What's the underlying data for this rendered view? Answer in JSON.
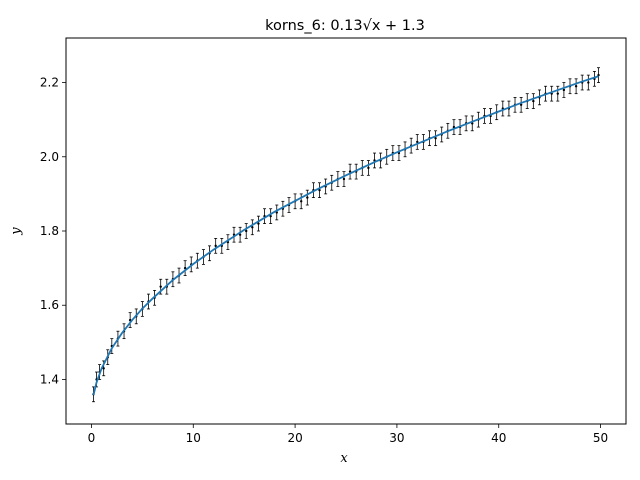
{
  "chart_data": {
    "type": "scatter",
    "title": "korns_6: 0.13√x + 1.3",
    "xlabel": "x",
    "ylabel": "y",
    "xlim": [
      -2.5,
      52.5
    ],
    "ylim": [
      1.28,
      2.32
    ],
    "x_ticks": [
      0,
      10,
      20,
      30,
      40,
      50
    ],
    "y_ticks": [
      1.4,
      1.6,
      1.8,
      2.0,
      2.2
    ],
    "x_tick_labels": [
      "0",
      "10",
      "20",
      "30",
      "40",
      "50"
    ],
    "y_tick_labels": [
      "1.4",
      "1.6",
      "1.8",
      "2.0",
      "2.2"
    ],
    "grid": false,
    "legend": "none",
    "series": [
      {
        "kind": "points-with-errorbars",
        "color": "#000000",
        "error": 0.02,
        "x": [
          0.2,
          0.5,
          0.8,
          1.2,
          1.6,
          2.0,
          2.6,
          3.2,
          3.8,
          4.4,
          5.0,
          5.6,
          6.2,
          6.8,
          7.4,
          8.0,
          8.6,
          9.2,
          9.8,
          10.4,
          11.0,
          11.6,
          12.2,
          12.8,
          13.4,
          14.0,
          14.6,
          15.2,
          15.8,
          16.4,
          17.0,
          17.6,
          18.2,
          18.8,
          19.4,
          20.0,
          20.6,
          21.2,
          21.8,
          22.4,
          23.0,
          23.6,
          24.2,
          24.8,
          25.4,
          26.0,
          26.6,
          27.2,
          27.8,
          28.4,
          29.0,
          29.6,
          30.2,
          30.8,
          31.4,
          32.0,
          32.6,
          33.2,
          33.8,
          34.4,
          35.0,
          35.6,
          36.2,
          36.8,
          37.4,
          38.0,
          38.6,
          39.2,
          39.8,
          40.4,
          41.0,
          41.6,
          42.2,
          42.8,
          43.4,
          44.0,
          44.6,
          45.2,
          45.8,
          46.4,
          47.0,
          47.6,
          48.2,
          48.8,
          49.4,
          49.8
        ],
        "y": [
          1.36,
          1.4,
          1.42,
          1.43,
          1.46,
          1.49,
          1.51,
          1.53,
          1.56,
          1.57,
          1.59,
          1.61,
          1.62,
          1.65,
          1.65,
          1.67,
          1.68,
          1.7,
          1.71,
          1.72,
          1.73,
          1.74,
          1.76,
          1.76,
          1.77,
          1.79,
          1.79,
          1.8,
          1.81,
          1.82,
          1.84,
          1.84,
          1.85,
          1.86,
          1.87,
          1.88,
          1.88,
          1.89,
          1.91,
          1.91,
          1.92,
          1.93,
          1.94,
          1.94,
          1.96,
          1.96,
          1.97,
          1.97,
          1.99,
          1.99,
          2.0,
          2.01,
          2.01,
          2.02,
          2.03,
          2.04,
          2.04,
          2.05,
          2.05,
          2.06,
          2.07,
          2.08,
          2.08,
          2.09,
          2.09,
          2.1,
          2.11,
          2.11,
          2.12,
          2.13,
          2.13,
          2.14,
          2.14,
          2.15,
          2.15,
          2.16,
          2.17,
          2.17,
          2.17,
          2.18,
          2.19,
          2.19,
          2.2,
          2.2,
          2.21,
          2.22
        ]
      },
      {
        "kind": "line",
        "color": "#1f77b4",
        "x": [
          0.2,
          0.5,
          1,
          2,
          3,
          4,
          5,
          6,
          8,
          10,
          12,
          15,
          18,
          20,
          22,
          25,
          28,
          30,
          32,
          35,
          38,
          40,
          42,
          45,
          48,
          49.8
        ],
        "y": [
          1.358,
          1.392,
          1.43,
          1.484,
          1.525,
          1.56,
          1.591,
          1.618,
          1.668,
          1.711,
          1.75,
          1.803,
          1.852,
          1.881,
          1.91,
          1.95,
          1.988,
          2.012,
          2.035,
          2.069,
          2.101,
          2.122,
          2.143,
          2.172,
          2.201,
          2.217
        ]
      }
    ]
  }
}
